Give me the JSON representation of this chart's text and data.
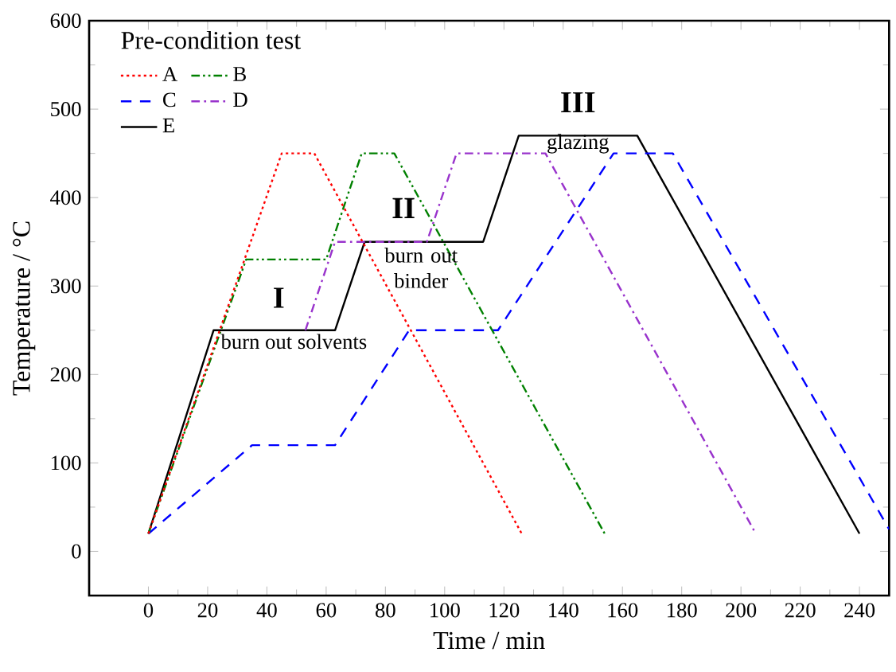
{
  "chart_data": {
    "type": "line",
    "xlabel": "Time /  min",
    "ylabel": "Temperature / °C",
    "legend_title": "Pre-condition test",
    "xlim": [
      -20,
      250
    ],
    "ylim": [
      -50,
      600
    ],
    "xticks": [
      0,
      20,
      40,
      60,
      80,
      100,
      120,
      140,
      160,
      180,
      200,
      220,
      240
    ],
    "yticks": [
      0,
      100,
      200,
      300,
      400,
      500,
      600
    ],
    "legend": "top left",
    "grid": false,
    "marker": "none",
    "series": [
      {
        "name": "A",
        "color": "#ff0000",
        "line_style": "dotted",
        "x": [
          0,
          45,
          56,
          126
        ],
        "values": [
          20,
          450,
          450,
          20
        ]
      },
      {
        "name": "B",
        "color": "#008000",
        "line_style": "dashdotdot",
        "x": [
          0,
          33,
          60,
          72,
          83,
          154
        ],
        "values": [
          20,
          330,
          330,
          450,
          450,
          20
        ]
      },
      {
        "name": "C",
        "color": "#0000ff",
        "line_style": "dashed",
        "x": [
          0,
          35,
          63,
          88,
          118,
          157,
          177,
          250
        ],
        "values": [
          20,
          120,
          120,
          250,
          250,
          450,
          450,
          25
        ]
      },
      {
        "name": "D",
        "color": "#9933cc",
        "line_style": "dashdot",
        "x": [
          53,
          63,
          94,
          104,
          134,
          205
        ],
        "values": [
          250,
          350,
          350,
          450,
          450,
          20
        ]
      },
      {
        "name": "E",
        "color": "#000000",
        "line_style": "solid",
        "x": [
          0,
          22,
          63,
          73,
          113,
          125,
          165,
          240
        ],
        "values": [
          20,
          250,
          250,
          350,
          350,
          470,
          470,
          20
        ]
      }
    ],
    "annotations": [
      "I",
      "II",
      "III",
      "burn out solvents",
      "burn out binder",
      "glazing"
    ]
  }
}
